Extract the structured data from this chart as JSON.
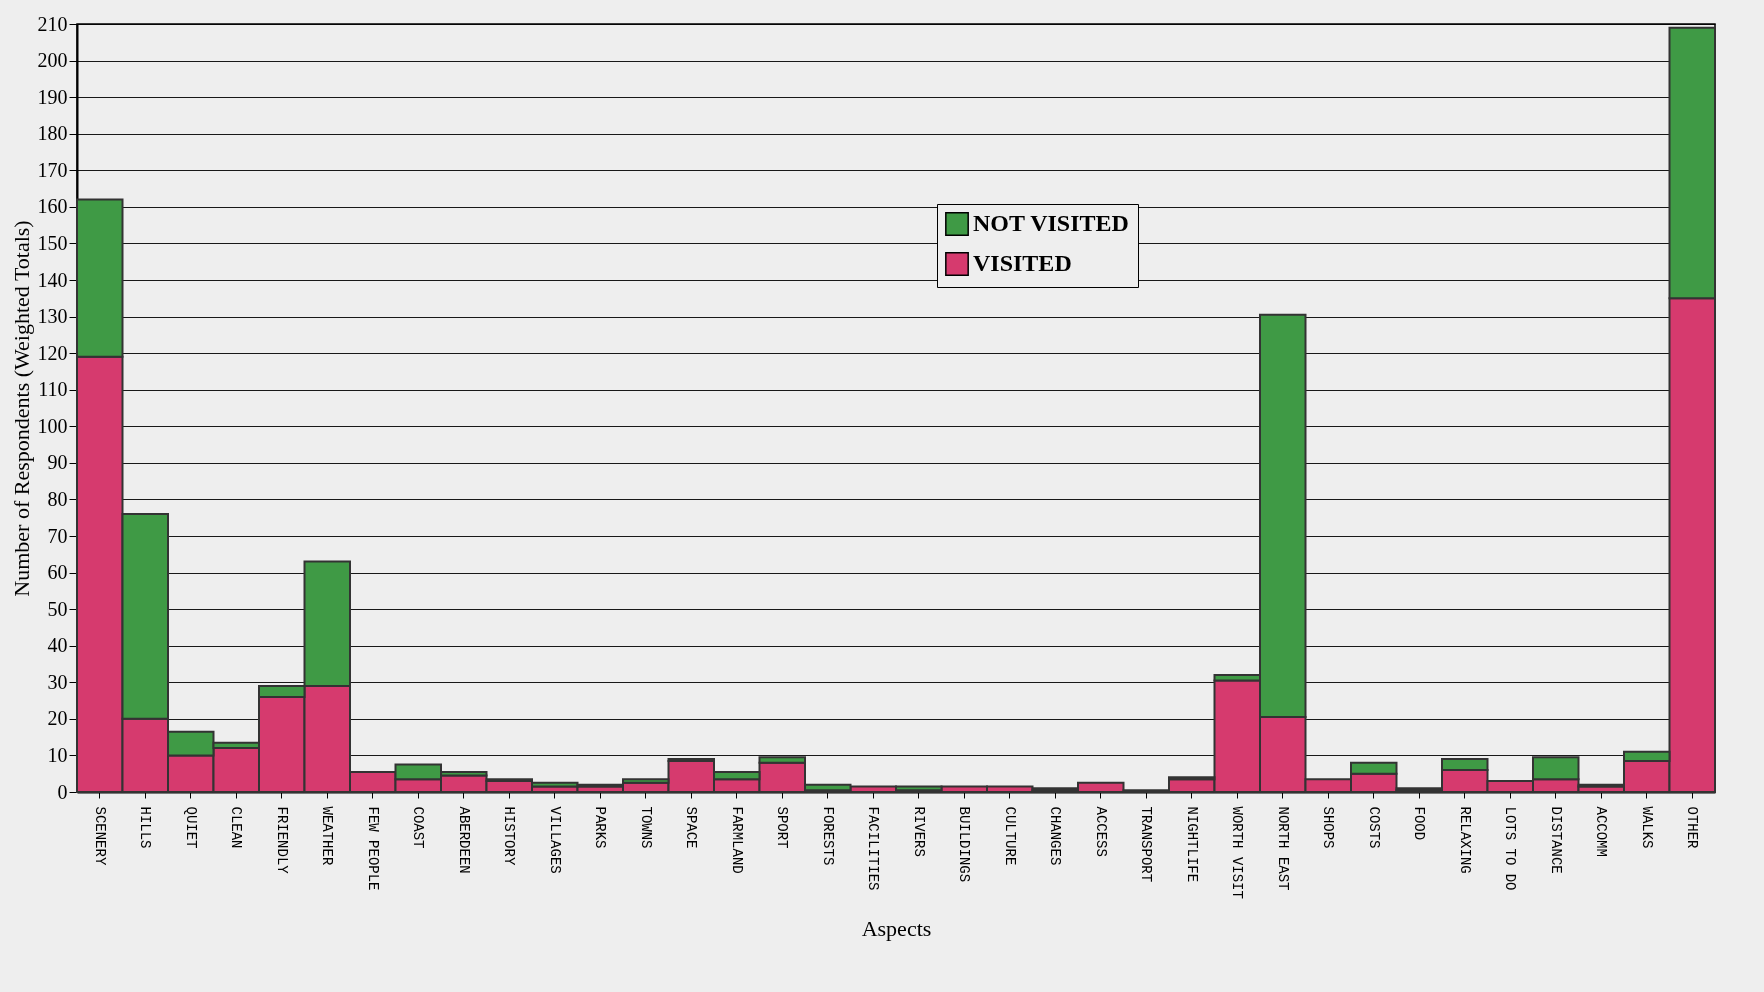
{
  "chart_data": {
    "type": "bar",
    "stacked": true,
    "xlabel": "Aspects",
    "ylabel": "Number of Respondents (Weighted Totals)",
    "categories": [
      "SCENERY",
      "HILLS",
      "QUIET",
      "CLEAN",
      "FRIENDLY",
      "WEATHER",
      "FEW PEOPLE",
      "COAST",
      "ABERDEEN",
      "HISTORY",
      "VILLAGES",
      "PARKS",
      "TOWNS",
      "SPACE",
      "FARMLAND",
      "SPORT",
      "FORESTS",
      "FACILITIES",
      "RIVERS",
      "BUILDINGS",
      "CULTURE",
      "CHANGES",
      "ACCESS",
      "TRANSPORT",
      "NIGHTLIFE",
      "WORTH VISIT",
      "NORTH EAST",
      "SHOPS",
      "COSTS",
      "FOOD",
      "RELAXING",
      "LOTS TO DO",
      "DISTANCE",
      "ACCOMM",
      "WALKS",
      "OTHER"
    ],
    "series": [
      {
        "name": "VISITED",
        "color": "#d63a6e",
        "values": [
          119,
          20,
          10,
          12,
          26,
          29,
          5.5,
          3.5,
          4.5,
          3,
          1.5,
          1.5,
          2.5,
          8.5,
          3.5,
          8,
          0.5,
          1.5,
          0.5,
          1.5,
          1.5,
          0.5,
          2.5,
          0,
          3.5,
          30.5,
          20.5,
          3.5,
          5,
          0.5,
          6,
          3,
          3.5,
          1.5,
          8.5,
          135
        ]
      },
      {
        "name": "NOT VISITED",
        "color": "#3f9a45",
        "values": [
          43,
          56,
          6.5,
          1.5,
          3,
          34,
          0,
          4,
          1,
          0.5,
          1,
          0.5,
          1,
          0.5,
          2,
          1.5,
          1.5,
          0,
          1,
          0,
          0,
          0.5,
          0,
          0.5,
          0.5,
          1.5,
          110,
          0,
          3,
          0.5,
          3,
          0,
          6,
          0.5,
          2.5,
          74
        ]
      }
    ],
    "ylim": [
      0,
      210
    ],
    "yticks": [
      0,
      10,
      20,
      30,
      40,
      50,
      60,
      70,
      80,
      90,
      100,
      110,
      120,
      130,
      140,
      150,
      160,
      170,
      180,
      190,
      200,
      210
    ],
    "grid": "y",
    "legend": "top"
  }
}
